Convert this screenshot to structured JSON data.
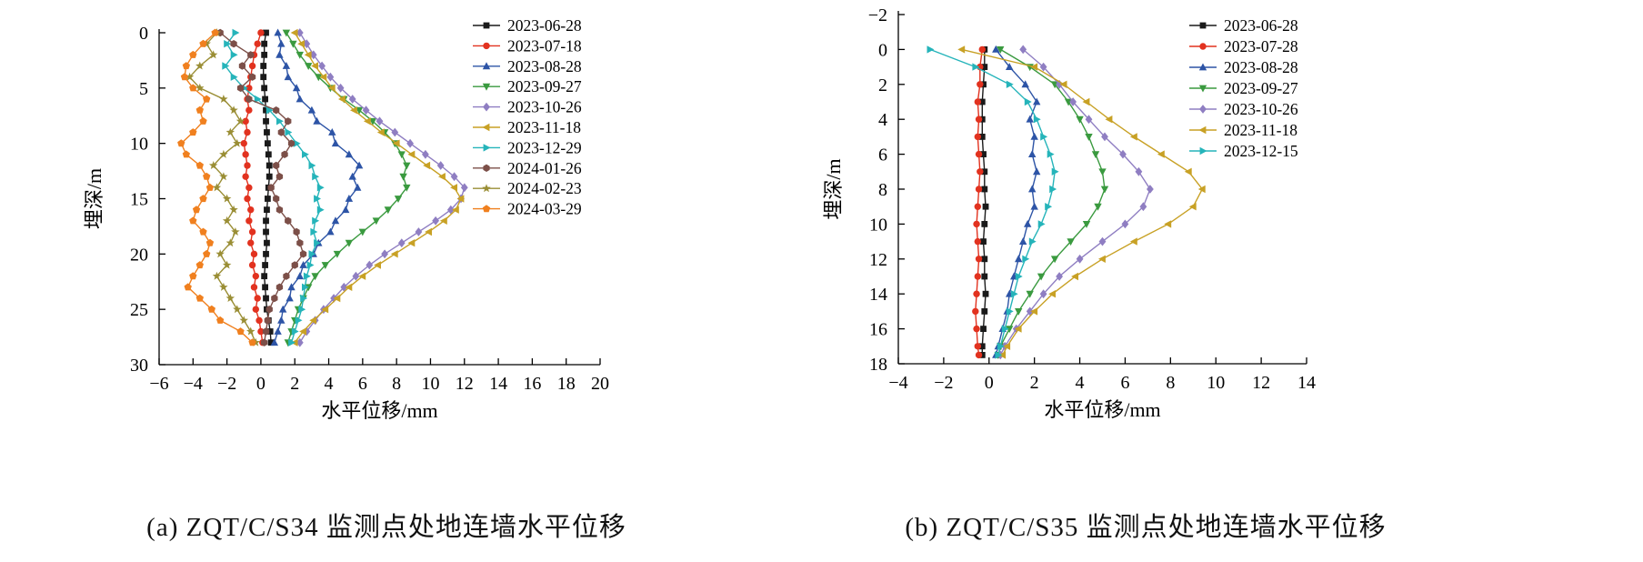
{
  "page": {
    "background": "#ffffff"
  },
  "chart_data": [
    {
      "type": "line",
      "caption": "(a) ZQT/C/S34 监测点处地连墙水平位移",
      "xlabel": "水平位移/mm",
      "ylabel": "埋深/m",
      "xlim": [
        -6,
        20
      ],
      "xticks": [
        -6,
        -4,
        -2,
        0,
        2,
        4,
        6,
        8,
        10,
        12,
        14,
        16,
        18,
        20
      ],
      "ylim": [
        0,
        30
      ],
      "yticks": [
        0,
        5,
        10,
        15,
        20,
        25,
        30
      ],
      "y_inverted": true,
      "grid": false,
      "legend_position": "top-right-inside",
      "depths": [
        0,
        1,
        2,
        3,
        4,
        5,
        6,
        7,
        8,
        9,
        10,
        11,
        12,
        13,
        14,
        15,
        16,
        17,
        18,
        19,
        20,
        21,
        22,
        23,
        24,
        25,
        26,
        27,
        28
      ],
      "series": [
        {
          "name": "2023-06-28",
          "color": "#1a1a1a",
          "marker": "square",
          "values": [
            0.3,
            0.2,
            0.2,
            0.15,
            0.15,
            0.2,
            0.25,
            0.3,
            0.3,
            0.35,
            0.4,
            0.45,
            0.5,
            0.5,
            0.45,
            0.4,
            0.35,
            0.3,
            0.3,
            0.35,
            0.3,
            0.25,
            0.2,
            0.25,
            0.3,
            0.35,
            0.45,
            0.55,
            0.6
          ]
        },
        {
          "name": "2023-07-18",
          "color": "#e2321f",
          "marker": "circle",
          "values": [
            0,
            -0.2,
            -0.4,
            -0.5,
            -0.6,
            -0.7,
            -0.8,
            -0.7,
            -0.9,
            -0.8,
            -1.0,
            -0.9,
            -0.8,
            -0.9,
            -0.7,
            -0.8,
            -0.6,
            -0.7,
            -0.5,
            -0.6,
            -0.4,
            -0.5,
            -0.3,
            -0.4,
            -0.2,
            -0.3,
            -0.1,
            0,
            0.1
          ]
        },
        {
          "name": "2023-08-28",
          "color": "#2d54a6",
          "marker": "triangle-up",
          "values": [
            1.0,
            1.2,
            1.1,
            1.5,
            1.6,
            2.1,
            2.3,
            3.0,
            3.3,
            4.2,
            4.4,
            5.2,
            5.8,
            5.4,
            5.7,
            5.2,
            5.0,
            4.4,
            4.1,
            3.4,
            3.1,
            2.5,
            2.3,
            1.8,
            1.7,
            1.3,
            1.2,
            1.0,
            0.8
          ]
        },
        {
          "name": "2023-09-27",
          "color": "#3a9a3f",
          "marker": "triangle-down",
          "values": [
            1.5,
            1.9,
            2.3,
            2.8,
            3.4,
            4.1,
            4.9,
            5.8,
            6.6,
            7.3,
            7.9,
            8.3,
            8.6,
            8.4,
            8.6,
            8.1,
            7.5,
            6.8,
            6.0,
            5.2,
            4.5,
            3.8,
            3.2,
            2.8,
            2.5,
            2.2,
            2.0,
            1.8,
            1.6
          ]
        },
        {
          "name": "2023-10-26",
          "color": "#8f7ec2",
          "marker": "diamond",
          "values": [
            2.3,
            2.7,
            3.1,
            3.6,
            4.1,
            4.7,
            5.4,
            6.2,
            7.0,
            7.9,
            8.8,
            9.7,
            10.6,
            11.4,
            12.0,
            11.8,
            11.2,
            10.3,
            9.3,
            8.3,
            7.3,
            6.4,
            5.6,
            4.9,
            4.3,
            3.7,
            3.2,
            2.7,
            2.3
          ]
        },
        {
          "name": "2023-11-18",
          "color": "#c8a125",
          "marker": "triangle-left",
          "values": [
            2.0,
            2.4,
            2.8,
            3.2,
            3.7,
            4.2,
            4.8,
            5.5,
            6.3,
            7.1,
            8.0,
            8.9,
            9.8,
            10.7,
            11.4,
            11.8,
            11.5,
            10.8,
            9.9,
            8.9,
            7.9,
            6.9,
            6.0,
            5.2,
            4.5,
            3.8,
            3.1,
            2.5,
            2.0
          ]
        },
        {
          "name": "2023-12-29",
          "color": "#25b4ba",
          "marker": "triangle-right",
          "values": [
            -1.5,
            -2.0,
            -1.6,
            -2.1,
            -1.6,
            -1.0,
            -0.2,
            0.5,
            1.1,
            1.6,
            2.1,
            2.6,
            3.0,
            3.2,
            3.5,
            3.3,
            3.5,
            3.2,
            3.1,
            3.3,
            3.0,
            2.9,
            2.7,
            2.6,
            2.5,
            2.4,
            2.2,
            2.0,
            1.8
          ]
        },
        {
          "name": "2024-01-26",
          "color": "#7c4f48",
          "marker": "hexagon",
          "values": [
            -2.4,
            -1.6,
            -0.6,
            -1.1,
            -0.5,
            -1.2,
            -0.7,
            0.9,
            1.6,
            1.2,
            1.8,
            1.4,
            0.9,
            1.1,
            0.6,
            0.9,
            1.1,
            1.6,
            2.1,
            2.3,
            2.5,
            2.0,
            1.5,
            1.1,
            0.8,
            0.5,
            0.4,
            0.3,
            0.2
          ]
        },
        {
          "name": "2024-02-23",
          "color": "#9a8e35",
          "marker": "star",
          "values": [
            -2.6,
            -3.2,
            -2.8,
            -3.6,
            -4.2,
            -3.6,
            -2.2,
            -1.6,
            -1.2,
            -1.8,
            -1.4,
            -2.2,
            -2.8,
            -2.2,
            -2.6,
            -2.0,
            -1.6,
            -2.0,
            -1.5,
            -1.8,
            -2.4,
            -2.0,
            -2.6,
            -2.2,
            -1.8,
            -1.4,
            -1.0,
            -0.6,
            -0.3
          ]
        },
        {
          "name": "2024-03-29",
          "color": "#f0801f",
          "marker": "pentagon",
          "values": [
            -2.7,
            -3.4,
            -4.0,
            -4.4,
            -4.5,
            -4.0,
            -3.2,
            -3.6,
            -3.4,
            -4.0,
            -4.7,
            -4.4,
            -3.6,
            -3.2,
            -3.0,
            -3.4,
            -3.8,
            -4.0,
            -3.4,
            -3.0,
            -3.2,
            -3.6,
            -4.0,
            -4.3,
            -3.6,
            -2.9,
            -2.4,
            -1.2,
            -0.5
          ]
        }
      ]
    },
    {
      "type": "line",
      "caption": "(b) ZQT/C/S35 监测点处地连墙水平位移",
      "xlabel": "水平位移/mm",
      "ylabel": "埋深/m",
      "xlim": [
        -4,
        14
      ],
      "xticks": [
        -4,
        -2,
        0,
        2,
        4,
        6,
        8,
        10,
        12,
        14
      ],
      "ylim": [
        -2,
        18
      ],
      "yticks": [
        -2,
        0,
        2,
        4,
        6,
        8,
        10,
        12,
        14,
        16,
        18
      ],
      "y_inverted": true,
      "grid": false,
      "legend_position": "top-right-inside",
      "depths": [
        0,
        1,
        2,
        3,
        4,
        5,
        6,
        7,
        8,
        9,
        10,
        11,
        12,
        13,
        14,
        15,
        16,
        17,
        17.5
      ],
      "series": [
        {
          "name": "2023-06-28",
          "color": "#1a1a1a",
          "marker": "square",
          "values": [
            -0.2,
            -0.2,
            -0.25,
            -0.3,
            -0.3,
            -0.3,
            -0.25,
            -0.2,
            -0.2,
            -0.15,
            -0.2,
            -0.25,
            -0.2,
            -0.2,
            -0.15,
            -0.2,
            -0.25,
            -0.3,
            -0.3
          ]
        },
        {
          "name": "2023-07-28",
          "color": "#e2321f",
          "marker": "circle",
          "values": [
            -0.3,
            -0.4,
            -0.4,
            -0.5,
            -0.45,
            -0.5,
            -0.45,
            -0.4,
            -0.45,
            -0.5,
            -0.55,
            -0.5,
            -0.45,
            -0.5,
            -0.55,
            -0.6,
            -0.55,
            -0.5,
            -0.45
          ]
        },
        {
          "name": "2023-08-28",
          "color": "#2d54a6",
          "marker": "triangle-up",
          "values": [
            0.3,
            0.9,
            1.6,
            2.1,
            1.8,
            2.0,
            1.9,
            2.1,
            1.9,
            2.0,
            1.7,
            1.5,
            1.3,
            1.1,
            0.9,
            0.8,
            0.6,
            0.4,
            0.3
          ]
        },
        {
          "name": "2023-09-27",
          "color": "#3a9a3f",
          "marker": "triangle-down",
          "values": [
            0.5,
            1.8,
            2.9,
            3.5,
            4.0,
            4.4,
            4.7,
            5.0,
            5.1,
            4.8,
            4.3,
            3.6,
            2.9,
            2.3,
            1.8,
            1.3,
            0.9,
            0.5,
            0.4
          ]
        },
        {
          "name": "2023-10-26",
          "color": "#8f7ec2",
          "marker": "diamond",
          "values": [
            1.5,
            2.4,
            3.1,
            3.7,
            4.4,
            5.1,
            5.9,
            6.6,
            7.1,
            6.8,
            6.0,
            5.0,
            4.0,
            3.1,
            2.4,
            1.8,
            1.2,
            0.7,
            0.5
          ]
        },
        {
          "name": "2023-11-18",
          "color": "#c8a125",
          "marker": "triangle-left",
          "values": [
            -1.2,
            2.0,
            3.3,
            4.3,
            5.3,
            6.4,
            7.6,
            8.8,
            9.4,
            9.0,
            7.9,
            6.4,
            5.0,
            3.8,
            2.8,
            2.0,
            1.3,
            0.8,
            0.6
          ]
        },
        {
          "name": "2023-12-15",
          "color": "#25b4ba",
          "marker": "triangle-right",
          "values": [
            -2.6,
            -0.6,
            0.9,
            1.7,
            2.1,
            2.4,
            2.7,
            2.9,
            2.8,
            2.6,
            2.3,
            1.9,
            1.6,
            1.3,
            1.1,
            0.9,
            0.7,
            0.5,
            0.4
          ]
        }
      ]
    }
  ]
}
